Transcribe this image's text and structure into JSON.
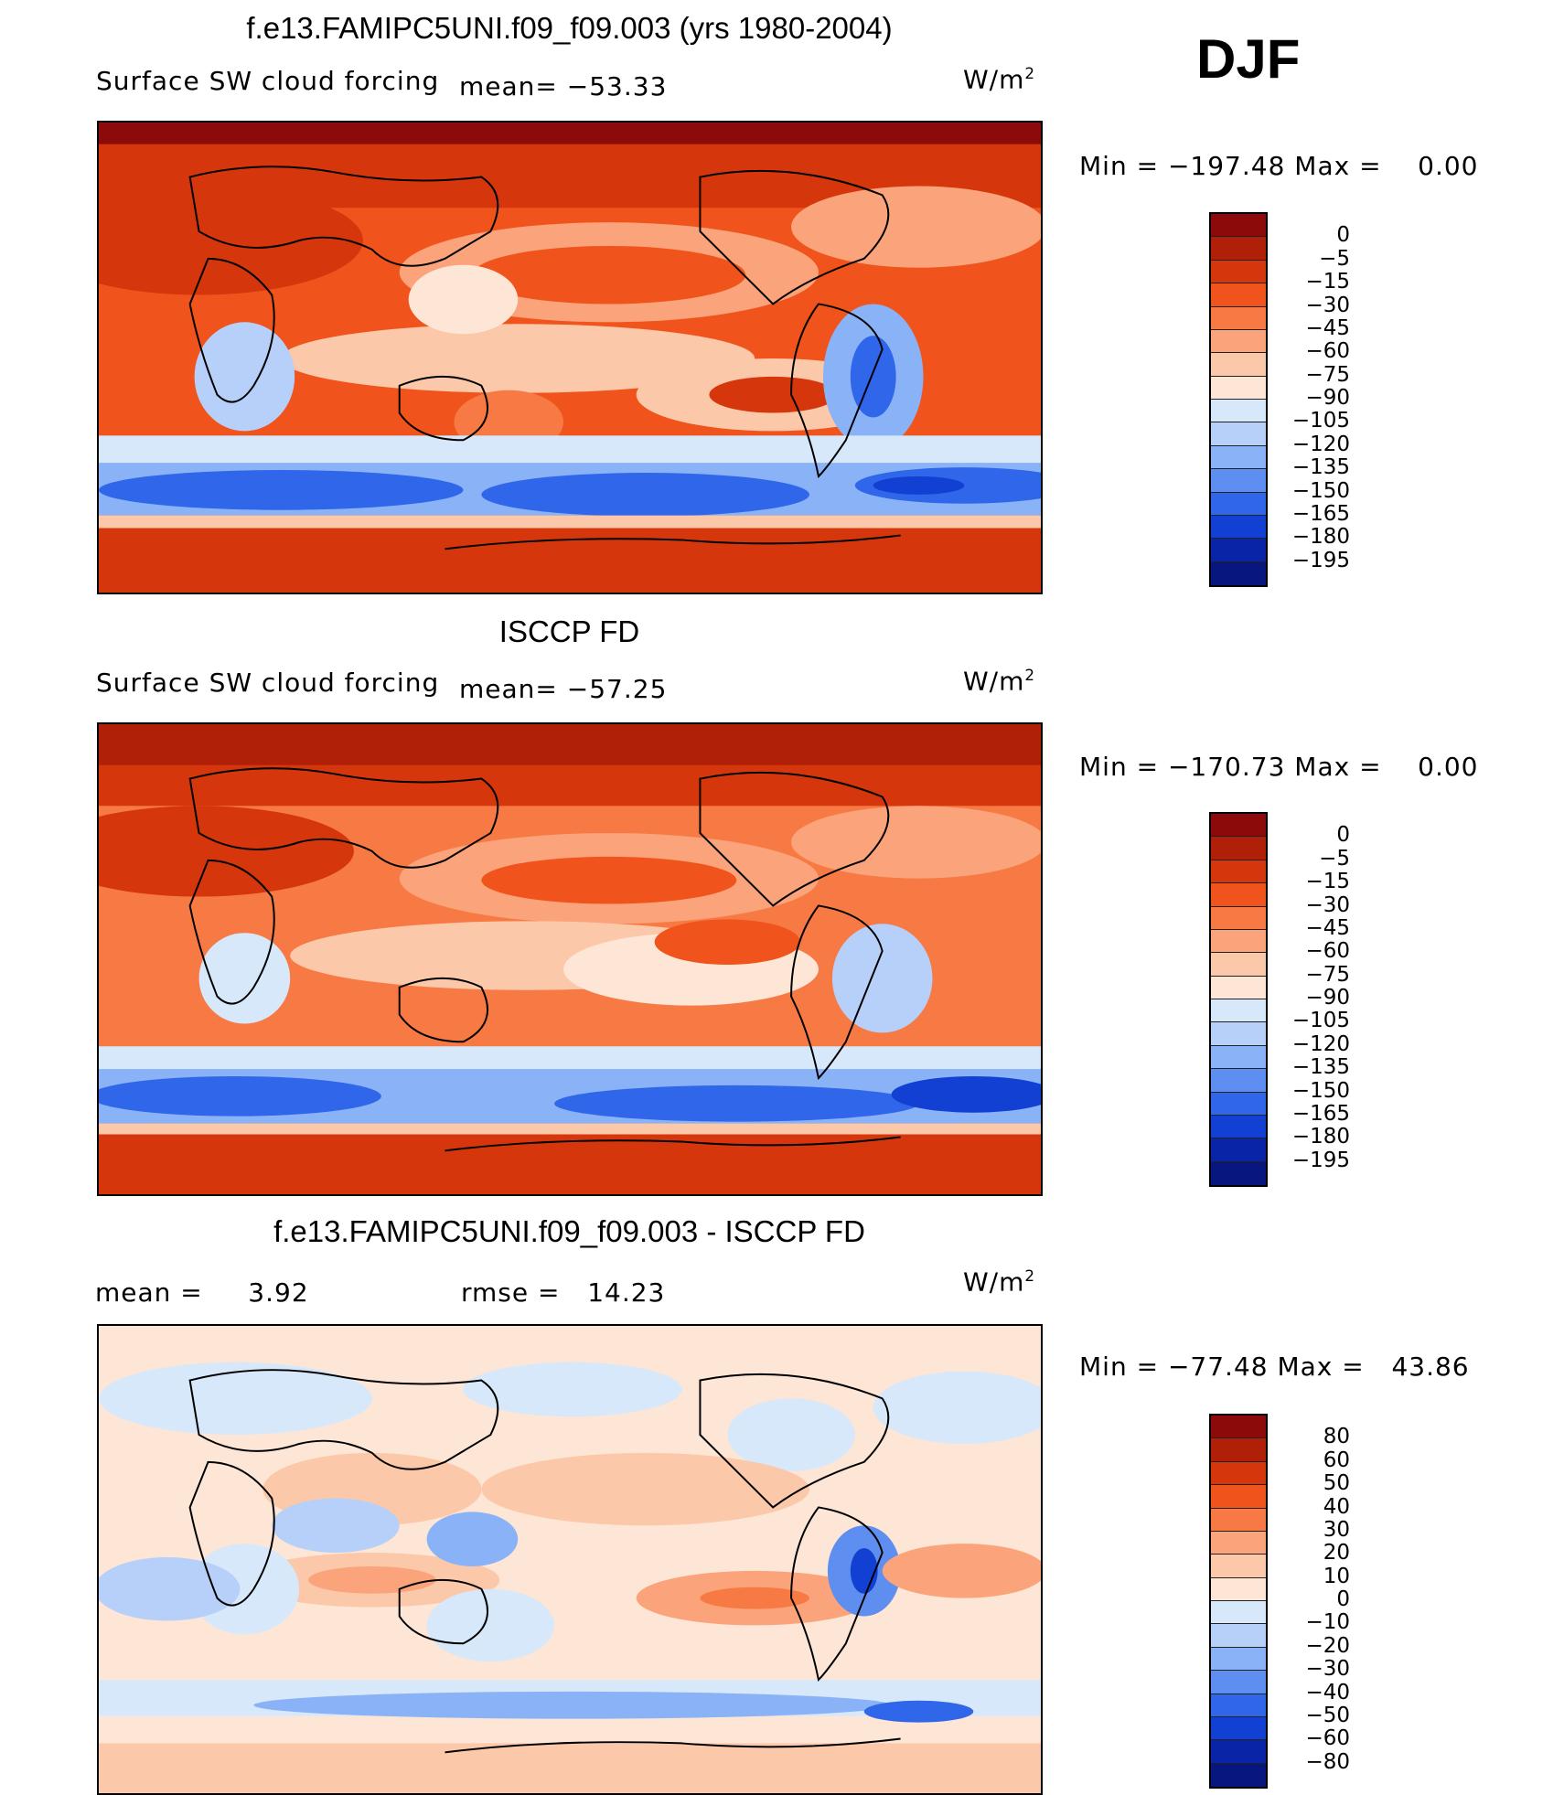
{
  "season": "DJF",
  "units": "W/m",
  "units_exp": "2",
  "panels": [
    {
      "title": "f.e13.FAMIPC5UNI.f09_f09.003 (yrs 1980-2004)",
      "left_label": "Surface SW cloud forcing",
      "mean_label": "mean=",
      "mean_value": "−53.33",
      "min_label": "Min  =",
      "min_value": "−197.48",
      "max_label": "Max  =",
      "max_value": "0.00"
    },
    {
      "title": "ISCCP FD",
      "left_label": "Surface SW cloud forcing",
      "mean_label": "mean=",
      "mean_value": "−57.25",
      "min_label": "Min  =",
      "min_value": "−170.73",
      "max_label": "Max  =",
      "max_value": "0.00"
    },
    {
      "title": "f.e13.FAMIPC5UNI.f09_f09.003 - ISCCP FD",
      "mean_label": "mean  =",
      "mean_value": "3.92",
      "rmse_label": "rmse  =",
      "rmse_value": "14.23",
      "min_label": "Min  =",
      "min_value": "−77.48",
      "max_label": "Max  =",
      "max_value": "43.86"
    }
  ],
  "colorbar_abs": {
    "levels": [
      "0",
      "−5",
      "−15",
      "−30",
      "−45",
      "−60",
      "−75",
      "−90",
      "−105",
      "−120",
      "−135",
      "−150",
      "−165",
      "−180",
      "−195"
    ],
    "colors": [
      "#8c0a0a",
      "#b02008",
      "#d5360c",
      "#f0541c",
      "#f77a44",
      "#fba37a",
      "#fcc8aa",
      "#fde6d6",
      "#d8e8fb",
      "#b6d0fa",
      "#8ab2f6",
      "#5d8ef0",
      "#3066ea",
      "#1240d2",
      "#0a24a8",
      "#081680"
    ]
  },
  "colorbar_diff": {
    "levels": [
      "80",
      "60",
      "50",
      "40",
      "30",
      "20",
      "10",
      "0",
      "−10",
      "−20",
      "−30",
      "−40",
      "−50",
      "−60",
      "−80"
    ],
    "colors": [
      "#8c0a0a",
      "#b02008",
      "#d5360c",
      "#f0541c",
      "#f77a44",
      "#fba37a",
      "#fcc8aa",
      "#fde6d6",
      "#d8e8fb",
      "#b6d0fa",
      "#8ab2f6",
      "#5d8ef0",
      "#3066ea",
      "#1240d2",
      "#0a24a8",
      "#081680"
    ]
  }
}
